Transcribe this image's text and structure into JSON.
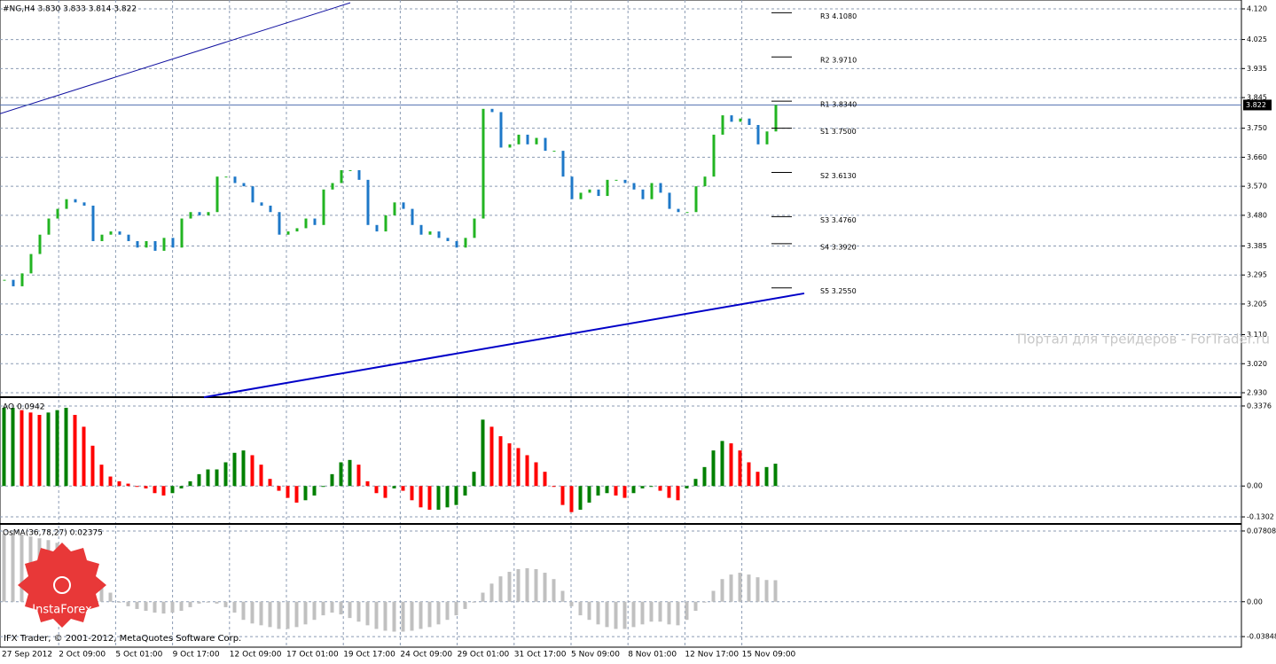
{
  "chart_data": [
    {
      "type": "candlestick",
      "title": "#NG,H4  3.830 3.833 3.814 3.822",
      "up_color": "#22b422",
      "down_color": "#1e78c8",
      "xlim": [
        -0.5,
        139.5
      ],
      "time_labels": [
        "27 Sep 2012",
        "2 Oct 09:00",
        "5 Oct 01:00",
        "9 Oct 17:00",
        "12 Oct 09:00",
        "17 Oct 01:00",
        "19 Oct 17:00",
        "24 Oct 09:00",
        "29 Oct 01:00",
        "31 Oct 17:00",
        "5 Nov 09:00",
        "8 Nov 01:00",
        "12 Nov 17:00",
        "15 Nov 09:00"
      ],
      "values": [
        3.28,
        3.26,
        3.3,
        3.36,
        3.42,
        3.47,
        3.5,
        3.53,
        3.52,
        3.51,
        3.4,
        3.42,
        3.43,
        3.42,
        3.4,
        3.38,
        3.4,
        3.37,
        3.41,
        3.38,
        3.47,
        3.49,
        3.48,
        3.49,
        3.6,
        3.6,
        3.58,
        3.57,
        3.52,
        3.51,
        3.49,
        3.42,
        3.43,
        3.44,
        3.47,
        3.45,
        3.56,
        3.58,
        3.62,
        3.62,
        3.59,
        3.45,
        3.43,
        3.48,
        3.52,
        3.5,
        3.45,
        3.42,
        3.43,
        3.41,
        3.4,
        3.38,
        3.41,
        3.47,
        3.81,
        3.8,
        3.69,
        3.7,
        3.73,
        3.7,
        3.72,
        3.68,
        3.68,
        3.6,
        3.53,
        3.55,
        3.56,
        3.54,
        3.59,
        3.59,
        3.58,
        3.56,
        3.53,
        3.58,
        3.55,
        3.5,
        3.49,
        3.49,
        3.57,
        3.6,
        3.73,
        3.79,
        3.77,
        3.78,
        3.76,
        3.7,
        3.74,
        3.822
      ],
      "ylim": [
        2.919,
        4.1475
      ],
      "yticks": [
        {
          "value": 4.12,
          "label": "4.120"
        },
        4.025,
        3.935,
        3.845,
        {
          "value": 3.75,
          "label": "3.750"
        },
        {
          "value": 3.66,
          "label": "3.660"
        },
        {
          "value": 3.57,
          "label": "3.570"
        },
        {
          "value": 3.48,
          "label": "3.480"
        },
        3.385,
        3.295,
        3.205,
        {
          "value": 3.11,
          "label": "3.110"
        },
        {
          "value": 3.02,
          "label": "3.020"
        },
        {
          "value": 2.93,
          "label": "2.930"
        }
      ],
      "current": 3.822,
      "pivots": [
        {
          "label": "R3 4.1080",
          "value": 4.108
        },
        {
          "label": "R2 3.9710",
          "value": 3.971
        },
        {
          "label": "R1 3.8340",
          "value": 3.834
        },
        {
          "label": "S1 3.7500",
          "value": 3.75
        },
        {
          "label": "S2 3.6130",
          "value": 3.613
        },
        {
          "label": "S3 3.4760",
          "value": 3.476
        },
        {
          "label": "S4 3.3920",
          "value": 3.392
        },
        {
          "label": "S5 3.2550",
          "value": 3.255
        }
      ],
      "trendlines": [
        {
          "x": [
            -0.5,
            39
          ],
          "y": [
            3.795,
            4.139
          ],
          "color": "#1010a0"
        },
        {
          "x": [
            22.5,
            90.2
          ],
          "y": [
            2.916,
            3.238
          ],
          "color": "#0000c8"
        }
      ],
      "watermark": "Портал для трейдеров - ForTrader.ru"
    },
    {
      "type": "bar",
      "title": "AO 0.0942",
      "up_color": "#008000",
      "down_color": "#ff0000",
      "ylim": [
        -0.1562,
        0.3636
      ],
      "yticks": [
        0.3376,
        {
          "value": 0,
          "label": "0.00"
        },
        -0.1302
      ],
      "values": [
        0.33,
        0.33,
        0.32,
        0.31,
        0.3,
        0.31,
        0.32,
        0.33,
        0.3,
        0.25,
        0.17,
        0.09,
        0.04,
        0.02,
        0.01,
        0.0,
        -0.01,
        -0.03,
        -0.04,
        -0.03,
        -0.01,
        0.02,
        0.05,
        0.07,
        0.07,
        0.1,
        0.14,
        0.15,
        0.13,
        0.09,
        0.03,
        -0.02,
        -0.05,
        -0.07,
        -0.06,
        -0.04,
        0.0,
        0.05,
        0.1,
        0.11,
        0.09,
        0.02,
        -0.03,
        -0.05,
        -0.01,
        -0.02,
        -0.06,
        -0.09,
        -0.1,
        -0.1,
        -0.09,
        -0.08,
        -0.04,
        0.06,
        0.28,
        0.25,
        0.21,
        0.18,
        0.16,
        0.13,
        0.1,
        0.06,
        0.0,
        -0.08,
        -0.11,
        -0.1,
        -0.07,
        -0.04,
        -0.03,
        -0.04,
        -0.05,
        -0.03,
        -0.01,
        0.0,
        -0.02,
        -0.05,
        -0.06,
        -0.01,
        0.03,
        0.08,
        0.15,
        0.19,
        0.18,
        0.15,
        0.1,
        0.06,
        0.08,
        0.0942
      ]
    },
    {
      "type": "bar",
      "title": "OsMA(36,78,27) 0.02375",
      "color": "#c0c0c0",
      "ylim": [
        -0.05014,
        0.08391
      ],
      "yticks": [
        0.07808,
        {
          "value": 0,
          "label": "0.00"
        },
        -0.03848
      ],
      "values": [
        0.075,
        0.075,
        0.074,
        0.072,
        0.07,
        0.068,
        0.065,
        0.06,
        0.05,
        0.04,
        0.03,
        0.02,
        0.01,
        0.0,
        -0.005,
        -0.008,
        -0.01,
        -0.012,
        -0.013,
        -0.012,
        -0.01,
        -0.006,
        -0.002,
        0.0,
        -0.002,
        -0.006,
        -0.012,
        -0.02,
        -0.024,
        -0.026,
        -0.028,
        -0.03,
        -0.03,
        -0.028,
        -0.025,
        -0.02,
        -0.015,
        -0.012,
        -0.014,
        -0.018,
        -0.022,
        -0.026,
        -0.03,
        -0.032,
        -0.033,
        -0.033,
        -0.032,
        -0.03,
        -0.028,
        -0.025,
        -0.02,
        -0.015,
        -0.008,
        0.0,
        0.01,
        0.02,
        0.028,
        0.033,
        0.036,
        0.037,
        0.036,
        0.032,
        0.025,
        0.012,
        -0.005,
        -0.015,
        -0.02,
        -0.025,
        -0.028,
        -0.03,
        -0.03,
        -0.028,
        -0.025,
        -0.022,
        -0.022,
        -0.025,
        -0.026,
        -0.02,
        -0.01,
        0.0,
        0.012,
        0.025,
        0.03,
        0.032,
        0.03,
        0.027,
        0.024,
        0.02375
      ],
      "copyright": "IFX Trader,  © 2001-2012, MetaQuotes Software Corp.",
      "logo": "InstaForex"
    }
  ]
}
